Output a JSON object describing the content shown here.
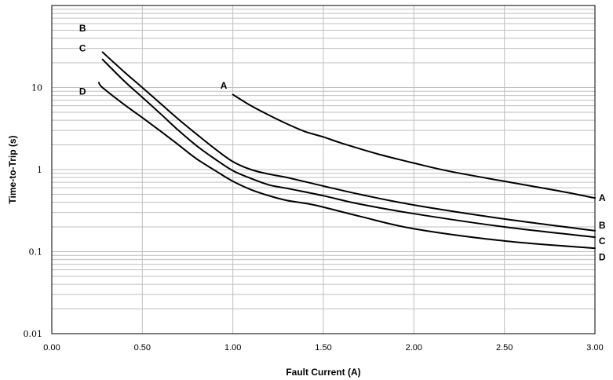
{
  "chart_data": {
    "type": "line",
    "title": "",
    "xlabel": "Fault Current (A)",
    "ylabel": "Time-to-Trip (s)",
    "xlim": [
      0,
      3
    ],
    "ylim": [
      0.01,
      100
    ],
    "yscale": "log",
    "grid": true,
    "x_tick_labels": [
      "0.00",
      "0.50",
      "1.00",
      "1.50",
      "2.00",
      "2.50",
      "3.00"
    ],
    "y_tick_labels": [
      "0.01",
      "0.1",
      "1",
      "10"
    ],
    "series": [
      {
        "name": "A",
        "x": [
          1.0,
          1.1,
          1.2,
          1.3,
          1.4,
          1.5,
          1.6,
          1.8,
          2.0,
          2.2,
          2.5,
          2.8,
          3.0
        ],
        "y": [
          8.2,
          6.0,
          4.6,
          3.6,
          2.9,
          2.5,
          2.1,
          1.55,
          1.2,
          0.95,
          0.72,
          0.55,
          0.45
        ]
      },
      {
        "name": "B",
        "x": [
          0.28,
          0.4,
          0.5,
          0.6,
          0.7,
          0.8,
          0.9,
          1.0,
          1.1,
          1.2,
          1.3,
          1.5,
          1.7,
          2.0,
          2.5,
          3.0
        ],
        "y": [
          27.0,
          15.5,
          10.0,
          6.4,
          4.1,
          2.7,
          1.8,
          1.25,
          1.0,
          0.88,
          0.8,
          0.63,
          0.5,
          0.37,
          0.25,
          0.18
        ]
      },
      {
        "name": "C",
        "x": [
          0.28,
          0.4,
          0.5,
          0.6,
          0.7,
          0.8,
          0.9,
          1.0,
          1.1,
          1.2,
          1.3,
          1.5,
          1.7,
          2.0,
          2.5,
          3.0
        ],
        "y": [
          22.0,
          12.0,
          7.6,
          4.8,
          3.0,
          1.95,
          1.35,
          0.97,
          0.78,
          0.65,
          0.59,
          0.48,
          0.38,
          0.29,
          0.2,
          0.15
        ]
      },
      {
        "name": "D",
        "x": [
          0.26,
          0.28,
          0.4,
          0.5,
          0.6,
          0.7,
          0.8,
          0.9,
          1.0,
          1.1,
          1.2,
          1.3,
          1.45,
          1.7,
          2.0,
          2.5,
          3.0
        ],
        "y": [
          11.5,
          10.0,
          6.2,
          4.3,
          2.95,
          2.0,
          1.35,
          0.98,
          0.72,
          0.57,
          0.48,
          0.42,
          0.37,
          0.27,
          0.19,
          0.135,
          0.11
        ]
      }
    ],
    "curve_labels": [
      {
        "text": "A",
        "x": 0.95,
        "y": 10.6
      },
      {
        "text": "B",
        "x": 0.17,
        "y": 53.0
      },
      {
        "text": "C",
        "x": 0.17,
        "y": 30.0
      },
      {
        "text": "D",
        "x": 0.17,
        "y": 9.0
      },
      {
        "text": "A",
        "x": 3.04,
        "y": 0.45
      },
      {
        "text": "B",
        "x": 3.04,
        "y": 0.21
      },
      {
        "text": "C",
        "x": 3.04,
        "y": 0.135
      },
      {
        "text": "D",
        "x": 3.04,
        "y": 0.086
      }
    ],
    "colors": {
      "grid": "#bfbfbf",
      "axis": "#000000",
      "line": "#000000"
    }
  }
}
